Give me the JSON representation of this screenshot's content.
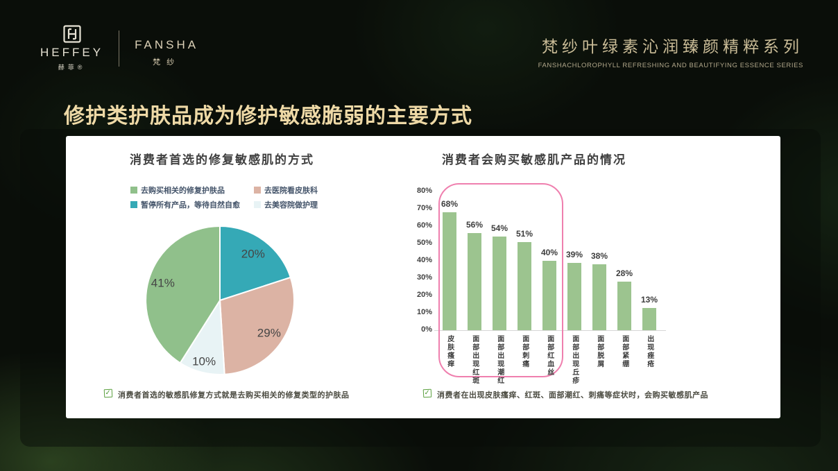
{
  "logo": {
    "heffey": "HEFFEY",
    "heffey_sub": "赫菲®",
    "fansha": "FANSHA",
    "fansha_sub": "梵纱"
  },
  "header": {
    "title": "梵纱叶绿素沁润臻颜精粹系列",
    "subtitle": "FANSHACHLOROPHYLL REFRESHING AND BEAUTIFYING ESSENCE SERIES"
  },
  "slide_title": "修护类护肤品成为修护敏感脆弱的主要方式",
  "chart_data": [
    {
      "type": "pie",
      "title": "消费者首选的修复敏感肌的方式",
      "start_angle_deg": 0,
      "direction": "clockwise",
      "legend_position": "top",
      "slices": [
        {
          "label": "暂停所有产品，等待自然自愈",
          "value": 20,
          "color": "#35a9b6"
        },
        {
          "label": "去医院看皮肤科",
          "value": 29,
          "color": "#dcb3a4"
        },
        {
          "label": "去美容院做护理",
          "value": 10,
          "color": "#e8f3f5"
        },
        {
          "label": "去购买相关的修复护肤品",
          "value": 41,
          "color": "#90c08b"
        }
      ],
      "legend_order": [
        {
          "label": "去购买相关的修复护肤品",
          "color": "#90c08b"
        },
        {
          "label": "去医院看皮肤科",
          "color": "#dcb3a4"
        },
        {
          "label": "暂停所有产品，等待自然自愈",
          "color": "#35a9b6"
        },
        {
          "label": "去美容院做护理",
          "color": "#e8f3f5"
        }
      ],
      "label_color": "#454545"
    },
    {
      "type": "bar",
      "title": "消费者会购买敏感肌产品的情况",
      "categories": [
        "皮肤瘙痒",
        "面部出现红斑",
        "面部出现潮红",
        "面部刺痛",
        "面部红血丝",
        "面部出现丘疹",
        "面部脱屑",
        "面部紧绷",
        "出现痤疮"
      ],
      "values": [
        68,
        56,
        54,
        51,
        40,
        39,
        38,
        28,
        13
      ],
      "value_labels": [
        "68%",
        "56%",
        "54%",
        "51%",
        "40%",
        "39%",
        "38%",
        "28%",
        "13%"
      ],
      "ylim": [
        0,
        80
      ],
      "ytick_step": 10,
      "ytick_labels": [
        "0%",
        "10%",
        "20%",
        "30%",
        "40%",
        "50%",
        "60%",
        "70%",
        "80%"
      ],
      "grid": false,
      "bar_color": "#9cc48f",
      "highlight_box": {
        "category_span": [
          0,
          4
        ],
        "color": "#ef7fae"
      }
    }
  ],
  "captions": {
    "check_glyph": "✓",
    "pie_note": "消费者首选的敏感肌修复方式就是去购买相关的修复类型的护肤品",
    "bar_note": "消费者在出现皮肤瘙痒、红斑、面部潮红、刺痛等症状时，会购买敏感肌产品"
  },
  "colors": {
    "heading_gold": "#eed9a6",
    "series_gold": "#cbbd98",
    "card_bg": "#ffffff",
    "pink_highlight": "#ef7fae",
    "legend_text": "#44546a"
  }
}
